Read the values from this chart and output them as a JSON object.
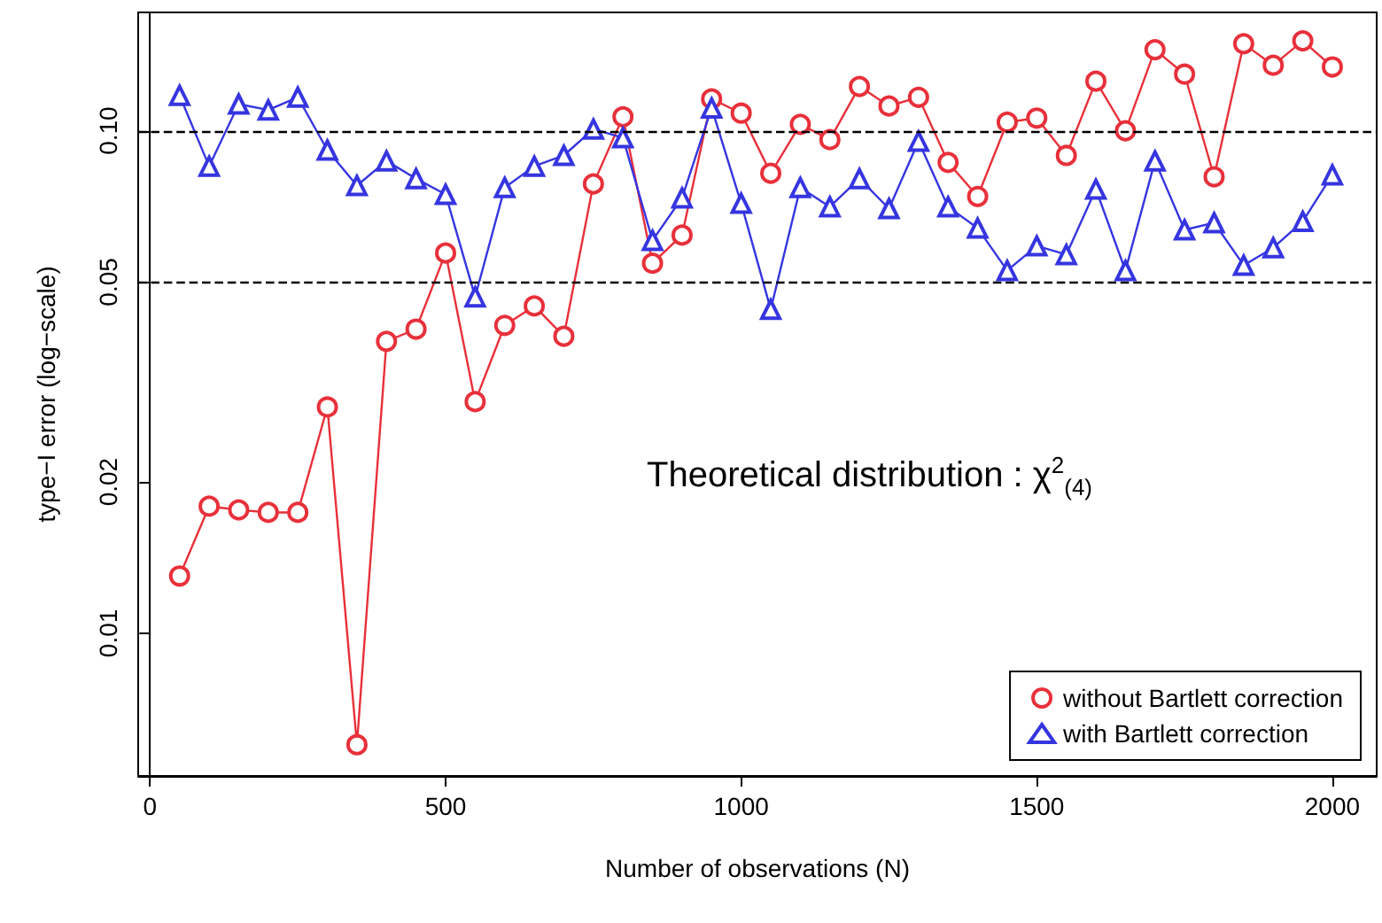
{
  "chart_data": {
    "type": "line",
    "xlabel": "Number of observations (N)",
    "ylabel": "type−I error (log−scale)",
    "x": [
      50,
      100,
      150,
      200,
      250,
      300,
      350,
      400,
      450,
      500,
      550,
      600,
      650,
      700,
      750,
      800,
      850,
      900,
      950,
      1000,
      1050,
      1100,
      1150,
      1200,
      1250,
      1300,
      1350,
      1400,
      1450,
      1500,
      1550,
      1600,
      1650,
      1700,
      1750,
      1800,
      1850,
      1900,
      1950,
      2000
    ],
    "series": [
      {
        "name": "without Bartlett correction",
        "color": "#e8303a",
        "marker": "circle",
        "values": [
          0.013,
          0.0179,
          0.0176,
          0.0174,
          0.0174,
          0.0282,
          0.006,
          0.0381,
          0.0403,
          0.0571,
          0.0289,
          0.041,
          0.0448,
          0.039,
          0.0784,
          0.1066,
          0.0545,
          0.062,
          0.1157,
          0.1084,
          0.0823,
          0.103,
          0.096,
          0.1225,
          0.112,
          0.1166,
          0.0865,
          0.074,
          0.104,
          0.106,
          0.0893,
          0.1255,
          0.1,
          0.145,
          0.1296,
          0.081,
          0.149,
          0.135,
          0.151,
          0.134
        ]
      },
      {
        "name": "with Bartlett correction",
        "color": "#3535e0",
        "marker": "triangle",
        "values": [
          0.1176,
          0.085,
          0.113,
          0.11,
          0.1166,
          0.0915,
          0.0778,
          0.0871,
          0.0803,
          0.0747,
          0.0467,
          0.0771,
          0.085,
          0.0893,
          0.1008,
          0.0968,
          0.0605,
          0.0735,
          0.111,
          0.0717,
          0.0441,
          0.0771,
          0.0706,
          0.0803,
          0.07,
          0.0953,
          0.0706,
          0.064,
          0.0527,
          0.059,
          0.0567,
          0.0765,
          0.0527,
          0.0871,
          0.0635,
          0.0656,
          0.054,
          0.0585,
          0.066,
          0.0817
        ]
      }
    ],
    "xlim": [
      -20,
      2075
    ],
    "xticks": [
      0,
      500,
      1000,
      1500,
      2000
    ],
    "ylim": [
      0.0052,
      0.172
    ],
    "yticks": [
      {
        "value": 0.01,
        "label": "0.01"
      },
      {
        "value": 0.02,
        "label": "0.02"
      },
      {
        "value": 0.05,
        "label": "0.05"
      },
      {
        "value": 0.1,
        "label": "0.10"
      }
    ],
    "log": "y",
    "grid": false,
    "legend": "bottom right",
    "ref_lines": [
      {
        "axis": "y",
        "value": 0.1,
        "line_style": "dashed",
        "color": "#000000"
      },
      {
        "axis": "y",
        "value": 0.05,
        "line_style": "dashed",
        "color": "#000000"
      }
    ],
    "annotations": [
      "Theoretical distribution : χ$^{2}$$_{(4)}$"
    ]
  }
}
